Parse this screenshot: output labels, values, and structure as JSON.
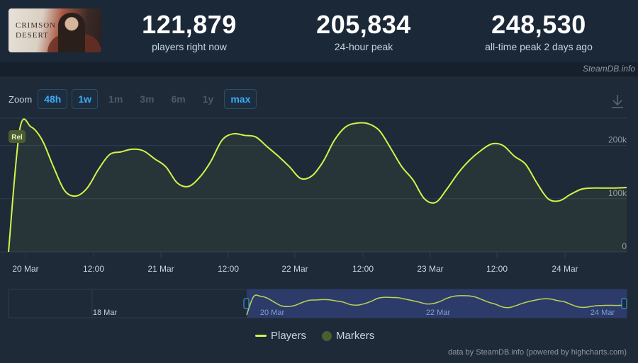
{
  "game": {
    "logo_text": "CRIMSON DESERT"
  },
  "stats": [
    {
      "value": "121,879",
      "label": "players right now"
    },
    {
      "value": "205,834",
      "label": "24-hour peak"
    },
    {
      "value": "248,530",
      "label": "all-time peak 2 days ago"
    }
  ],
  "credit_top": "SteamDB.info",
  "zoom": {
    "label": "Zoom",
    "buttons": [
      {
        "label": "48h",
        "active": true
      },
      {
        "label": "1w",
        "active": true
      },
      {
        "label": "1m",
        "active": false
      },
      {
        "label": "3m",
        "active": false
      },
      {
        "label": "6m",
        "active": false
      },
      {
        "label": "1y",
        "active": false
      },
      {
        "label": "max",
        "active": true
      }
    ]
  },
  "colors": {
    "line": "#d4f34a",
    "grid": "#2c3d4f",
    "marker": "#4b5e2f",
    "navigator_mask": "#2d3b6b"
  },
  "marker": {
    "label": "Rel"
  },
  "chart_data": {
    "type": "line",
    "series": [
      {
        "name": "Players",
        "x": [
          "19 Mar 21:00",
          "19 Mar 22:00",
          "20 Mar 00:00",
          "20 Mar 02:00",
          "20 Mar 04:00",
          "20 Mar 06:00",
          "20 Mar 08:00",
          "20 Mar 10:00",
          "20 Mar 12:00",
          "20 Mar 14:00",
          "20 Mar 16:00",
          "20 Mar 18:00",
          "20 Mar 20:00",
          "20 Mar 22:00",
          "21 Mar 00:00",
          "21 Mar 02:00",
          "21 Mar 04:00",
          "21 Mar 06:00",
          "21 Mar 08:00",
          "21 Mar 10:00",
          "21 Mar 12:00",
          "21 Mar 14:00",
          "21 Mar 16:00",
          "21 Mar 18:00",
          "21 Mar 20:00",
          "21 Mar 22:00",
          "22 Mar 00:00",
          "22 Mar 02:00",
          "22 Mar 04:00",
          "22 Mar 06:00",
          "22 Mar 08:00",
          "22 Mar 10:00",
          "22 Mar 12:00",
          "22 Mar 14:00",
          "22 Mar 16:00",
          "22 Mar 18:00",
          "22 Mar 20:00",
          "22 Mar 22:00",
          "23 Mar 00:00",
          "23 Mar 02:00",
          "23 Mar 04:00",
          "23 Mar 06:00",
          "23 Mar 08:00",
          "23 Mar 10:00",
          "23 Mar 12:00",
          "23 Mar 14:00",
          "23 Mar 16:00",
          "23 Mar 18:00",
          "23 Mar 20:00",
          "23 Mar 22:00",
          "24 Mar 00:00",
          "24 Mar 02:00",
          "24 Mar 04:00",
          "24 Mar 06:00",
          "24 Mar 08:00",
          "24 Mar 10:00"
        ],
        "values": [
          0,
          230000,
          235000,
          210000,
          160000,
          115000,
          105000,
          120000,
          155000,
          183000,
          188000,
          193000,
          190000,
          175000,
          160000,
          130000,
          123000,
          140000,
          170000,
          210000,
          222000,
          219000,
          216000,
          198000,
          180000,
          160000,
          138000,
          143000,
          170000,
          210000,
          235000,
          242000,
          241000,
          228000,
          195000,
          160000,
          135000,
          100000,
          93000,
          118000,
          148000,
          172000,
          190000,
          203000,
          200000,
          180000,
          165000,
          130000,
          100000,
          96000,
          108000,
          118000,
          120000,
          120000,
          120000,
          121000
        ]
      }
    ],
    "y_axis": {
      "ticks": [
        "0",
        "100k",
        "200k"
      ],
      "ylim": [
        0,
        250000
      ]
    },
    "x_axis": {
      "ticks": [
        "20 Mar",
        "12:00",
        "21 Mar",
        "12:00",
        "22 Mar",
        "12:00",
        "23 Mar",
        "12:00",
        "24 Mar"
      ]
    },
    "navigator": {
      "labels": [
        "18 Mar",
        "20 Mar",
        "22 Mar",
        "24 Mar"
      ]
    },
    "legend": [
      "Players",
      "Markers"
    ],
    "legend_position": "bottom-center",
    "grid": true
  },
  "credit_bottom": "data by SteamDB.info (powered by highcharts.com)"
}
